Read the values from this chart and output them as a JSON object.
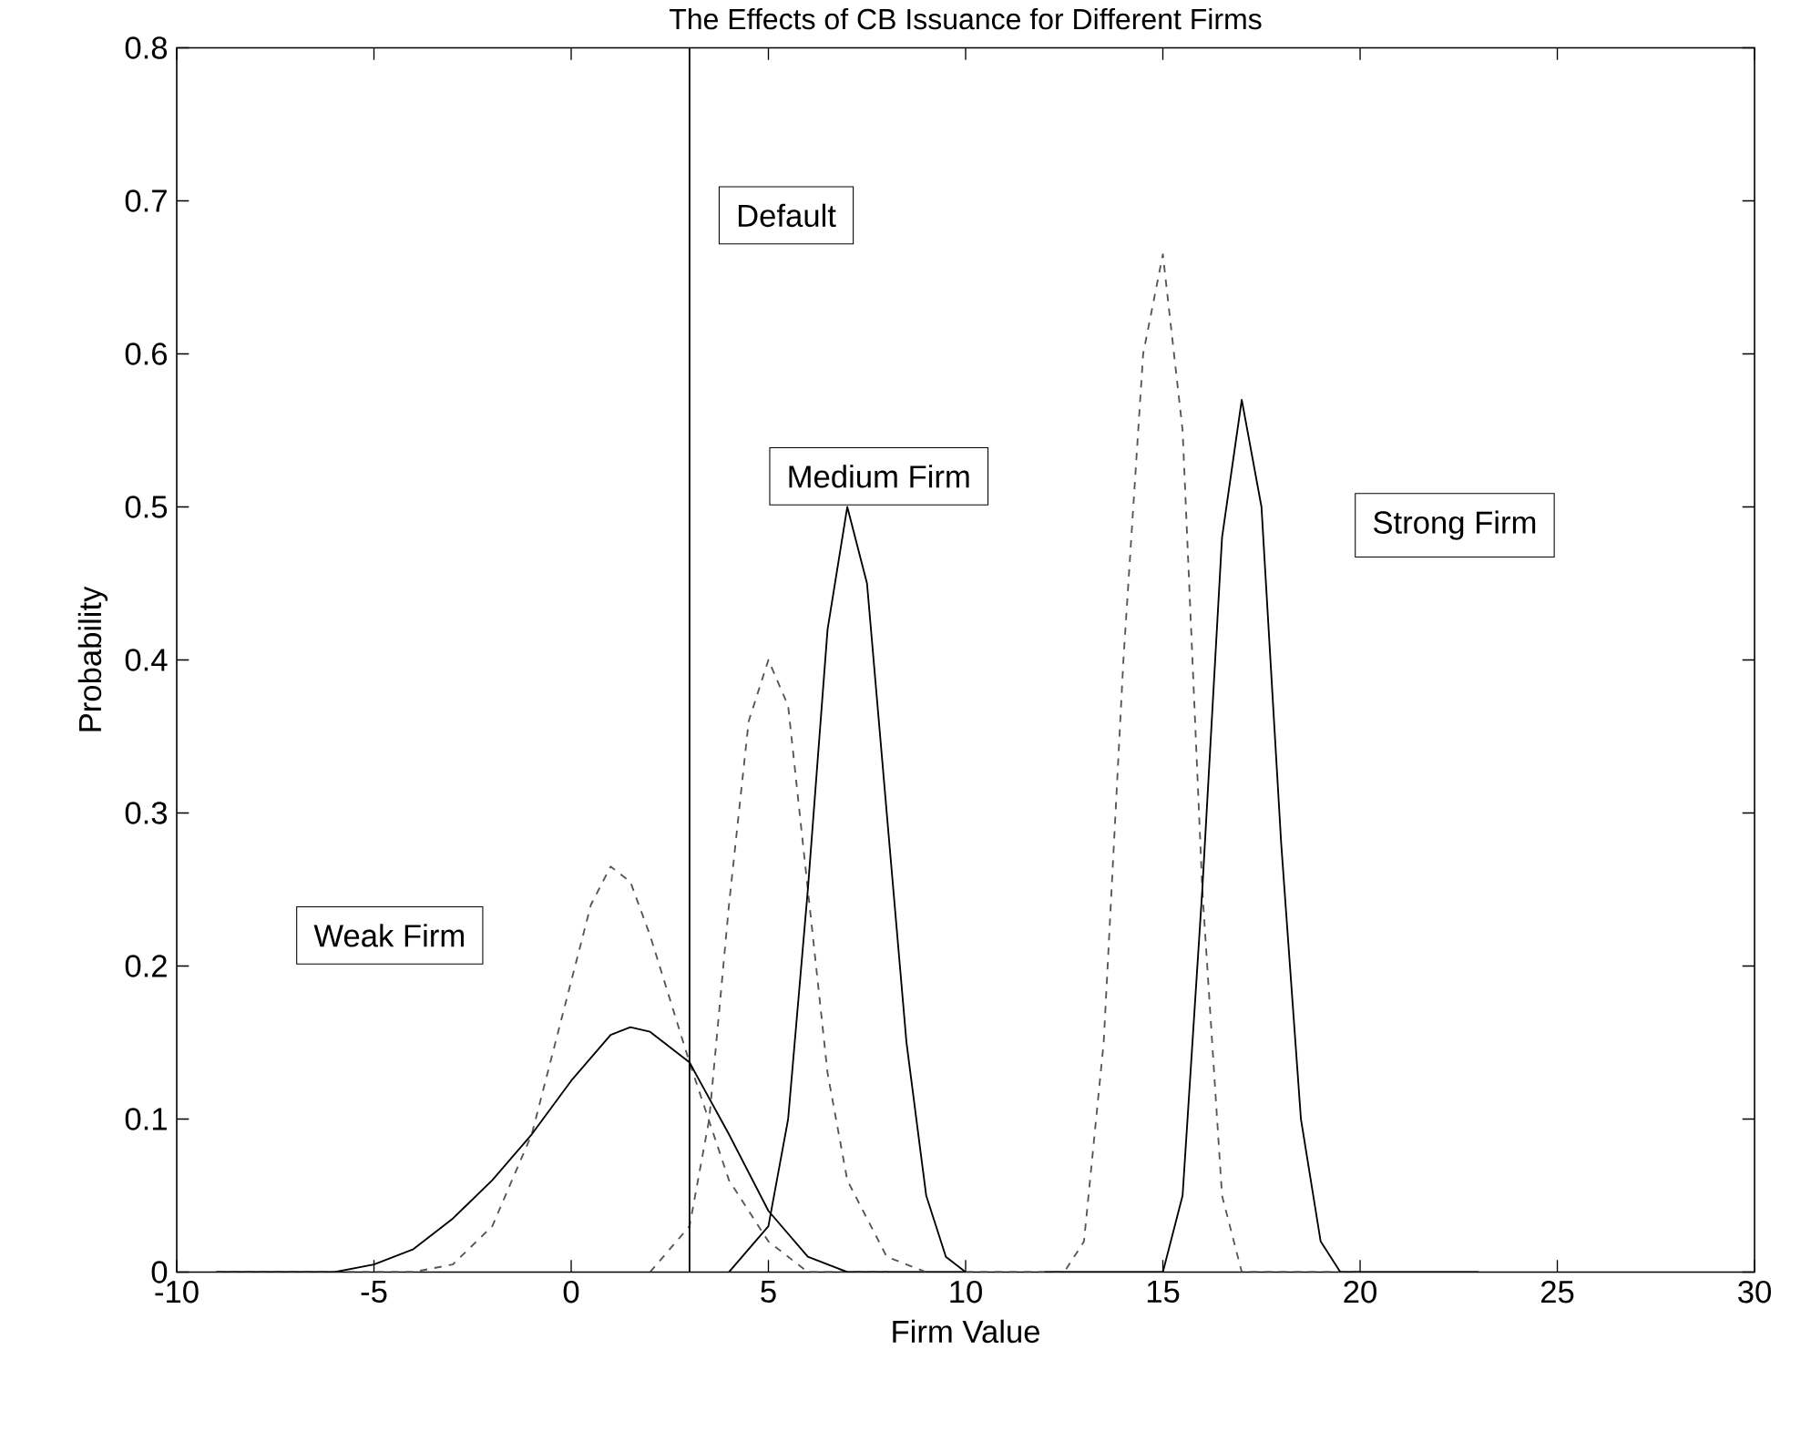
{
  "chart_data": {
    "type": "line",
    "title": "The Effects of CB Issuance for Different Firms",
    "xlabel": "Firm Value",
    "ylabel": "Probability",
    "xlim": [
      -10,
      30
    ],
    "ylim": [
      0,
      0.8
    ],
    "xticks": [
      -10,
      -5,
      0,
      5,
      10,
      15,
      20,
      25,
      30
    ],
    "yticks": [
      0,
      0.1,
      0.2,
      0.3,
      0.4,
      0.5,
      0.6,
      0.7,
      0.8
    ],
    "grid": false,
    "marker": "none",
    "series": [
      {
        "color": "#555555",
        "line_style": "dashed",
        "x": [
          -9,
          -4,
          -3,
          -2,
          -1,
          0,
          0.5,
          1,
          1.5,
          2,
          3,
          4,
          5,
          6,
          8
        ],
        "values": [
          0,
          0,
          0.005,
          0.03,
          0.09,
          0.19,
          0.24,
          0.265,
          0.255,
          0.22,
          0.137,
          0.06,
          0.02,
          0,
          0
        ]
      },
      {
        "color": "#000000",
        "line_style": "solid",
        "x": [
          -9,
          -6,
          -5,
          -4,
          -3,
          -2,
          -1,
          0,
          1,
          1.5,
          2,
          3,
          4,
          5,
          6,
          7,
          10
        ],
        "values": [
          0,
          0,
          0.005,
          0.015,
          0.035,
          0.06,
          0.09,
          0.125,
          0.155,
          0.16,
          0.157,
          0.137,
          0.09,
          0.04,
          0.01,
          0,
          0
        ]
      },
      {
        "color": "#555555",
        "line_style": "dashed",
        "x": [
          2,
          3,
          3.5,
          4,
          4.5,
          5,
          5.5,
          6,
          6.5,
          7,
          8,
          9
        ],
        "values": [
          0,
          0.03,
          0.1,
          0.24,
          0.36,
          0.4,
          0.37,
          0.25,
          0.13,
          0.06,
          0.01,
          0
        ]
      },
      {
        "color": "#000000",
        "line_style": "solid",
        "x": [
          4,
          5,
          5.5,
          6,
          6.5,
          7,
          7.5,
          8,
          8.5,
          9,
          9.5,
          10
        ],
        "values": [
          0,
          0.03,
          0.1,
          0.25,
          0.42,
          0.5,
          0.45,
          0.3,
          0.15,
          0.05,
          0.01,
          0
        ]
      },
      {
        "color": "#555555",
        "line_style": "dashed",
        "x": [
          10,
          12.5,
          13,
          13.5,
          14,
          14.5,
          15,
          15.5,
          16,
          16.5,
          17,
          20
        ],
        "values": [
          0,
          0,
          0.02,
          0.15,
          0.4,
          0.6,
          0.665,
          0.55,
          0.25,
          0.05,
          0,
          0
        ]
      },
      {
        "color": "#000000",
        "line_style": "solid",
        "x": [
          12,
          15,
          15.5,
          16,
          16.5,
          17,
          17.5,
          18,
          18.5,
          19,
          19.5,
          23
        ],
        "values": [
          0,
          0,
          0.05,
          0.25,
          0.48,
          0.57,
          0.5,
          0.28,
          0.1,
          0.02,
          0,
          0
        ]
      }
    ],
    "ref_lines": [
      {
        "axis": "x",
        "value": 3,
        "label": "Default",
        "color": "#000000"
      }
    ],
    "annotations": [
      "Weak Firm",
      "Medium Firm",
      "Strong Firm"
    ]
  }
}
